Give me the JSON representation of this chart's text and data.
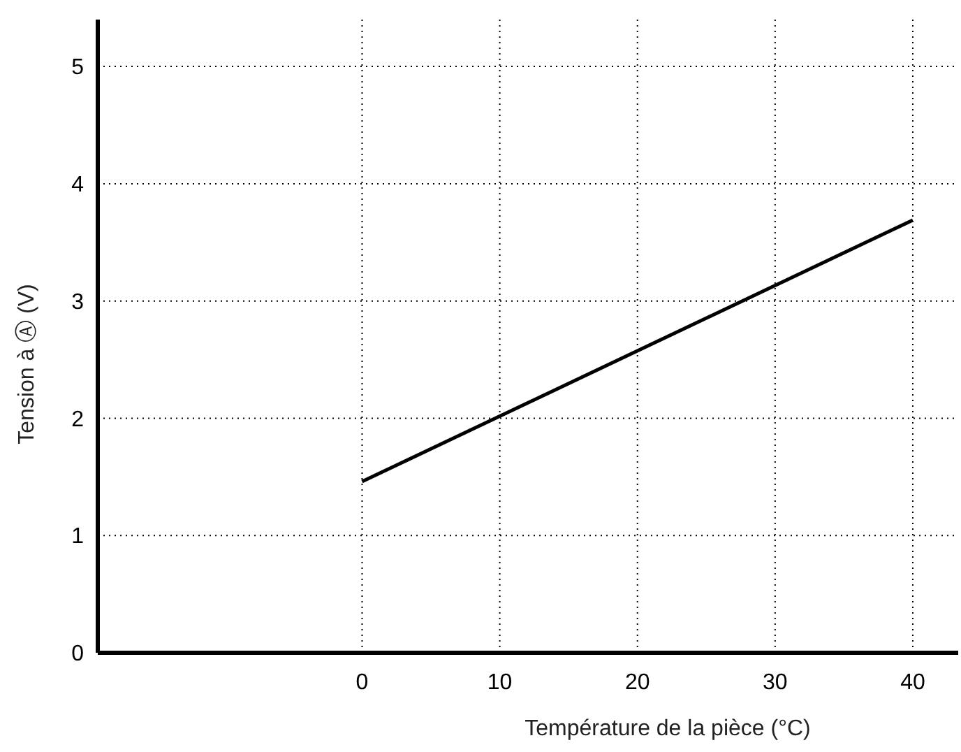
{
  "chart_data": {
    "type": "line",
    "xlabel": "Température de la pièce (°C)",
    "ylabel": "Tension à Ⓐ (V)",
    "x": [
      0,
      40
    ],
    "series": [
      {
        "color": "#000000",
        "values": [
          1.46,
          3.69
        ]
      }
    ],
    "xlim": [
      -19.2,
      43.3
    ],
    "xticks": [
      0,
      10,
      20,
      30,
      40
    ],
    "ylim": [
      0,
      5.4
    ],
    "yticks": [
      0,
      1,
      2,
      3,
      4,
      5
    ],
    "grid": true
  }
}
